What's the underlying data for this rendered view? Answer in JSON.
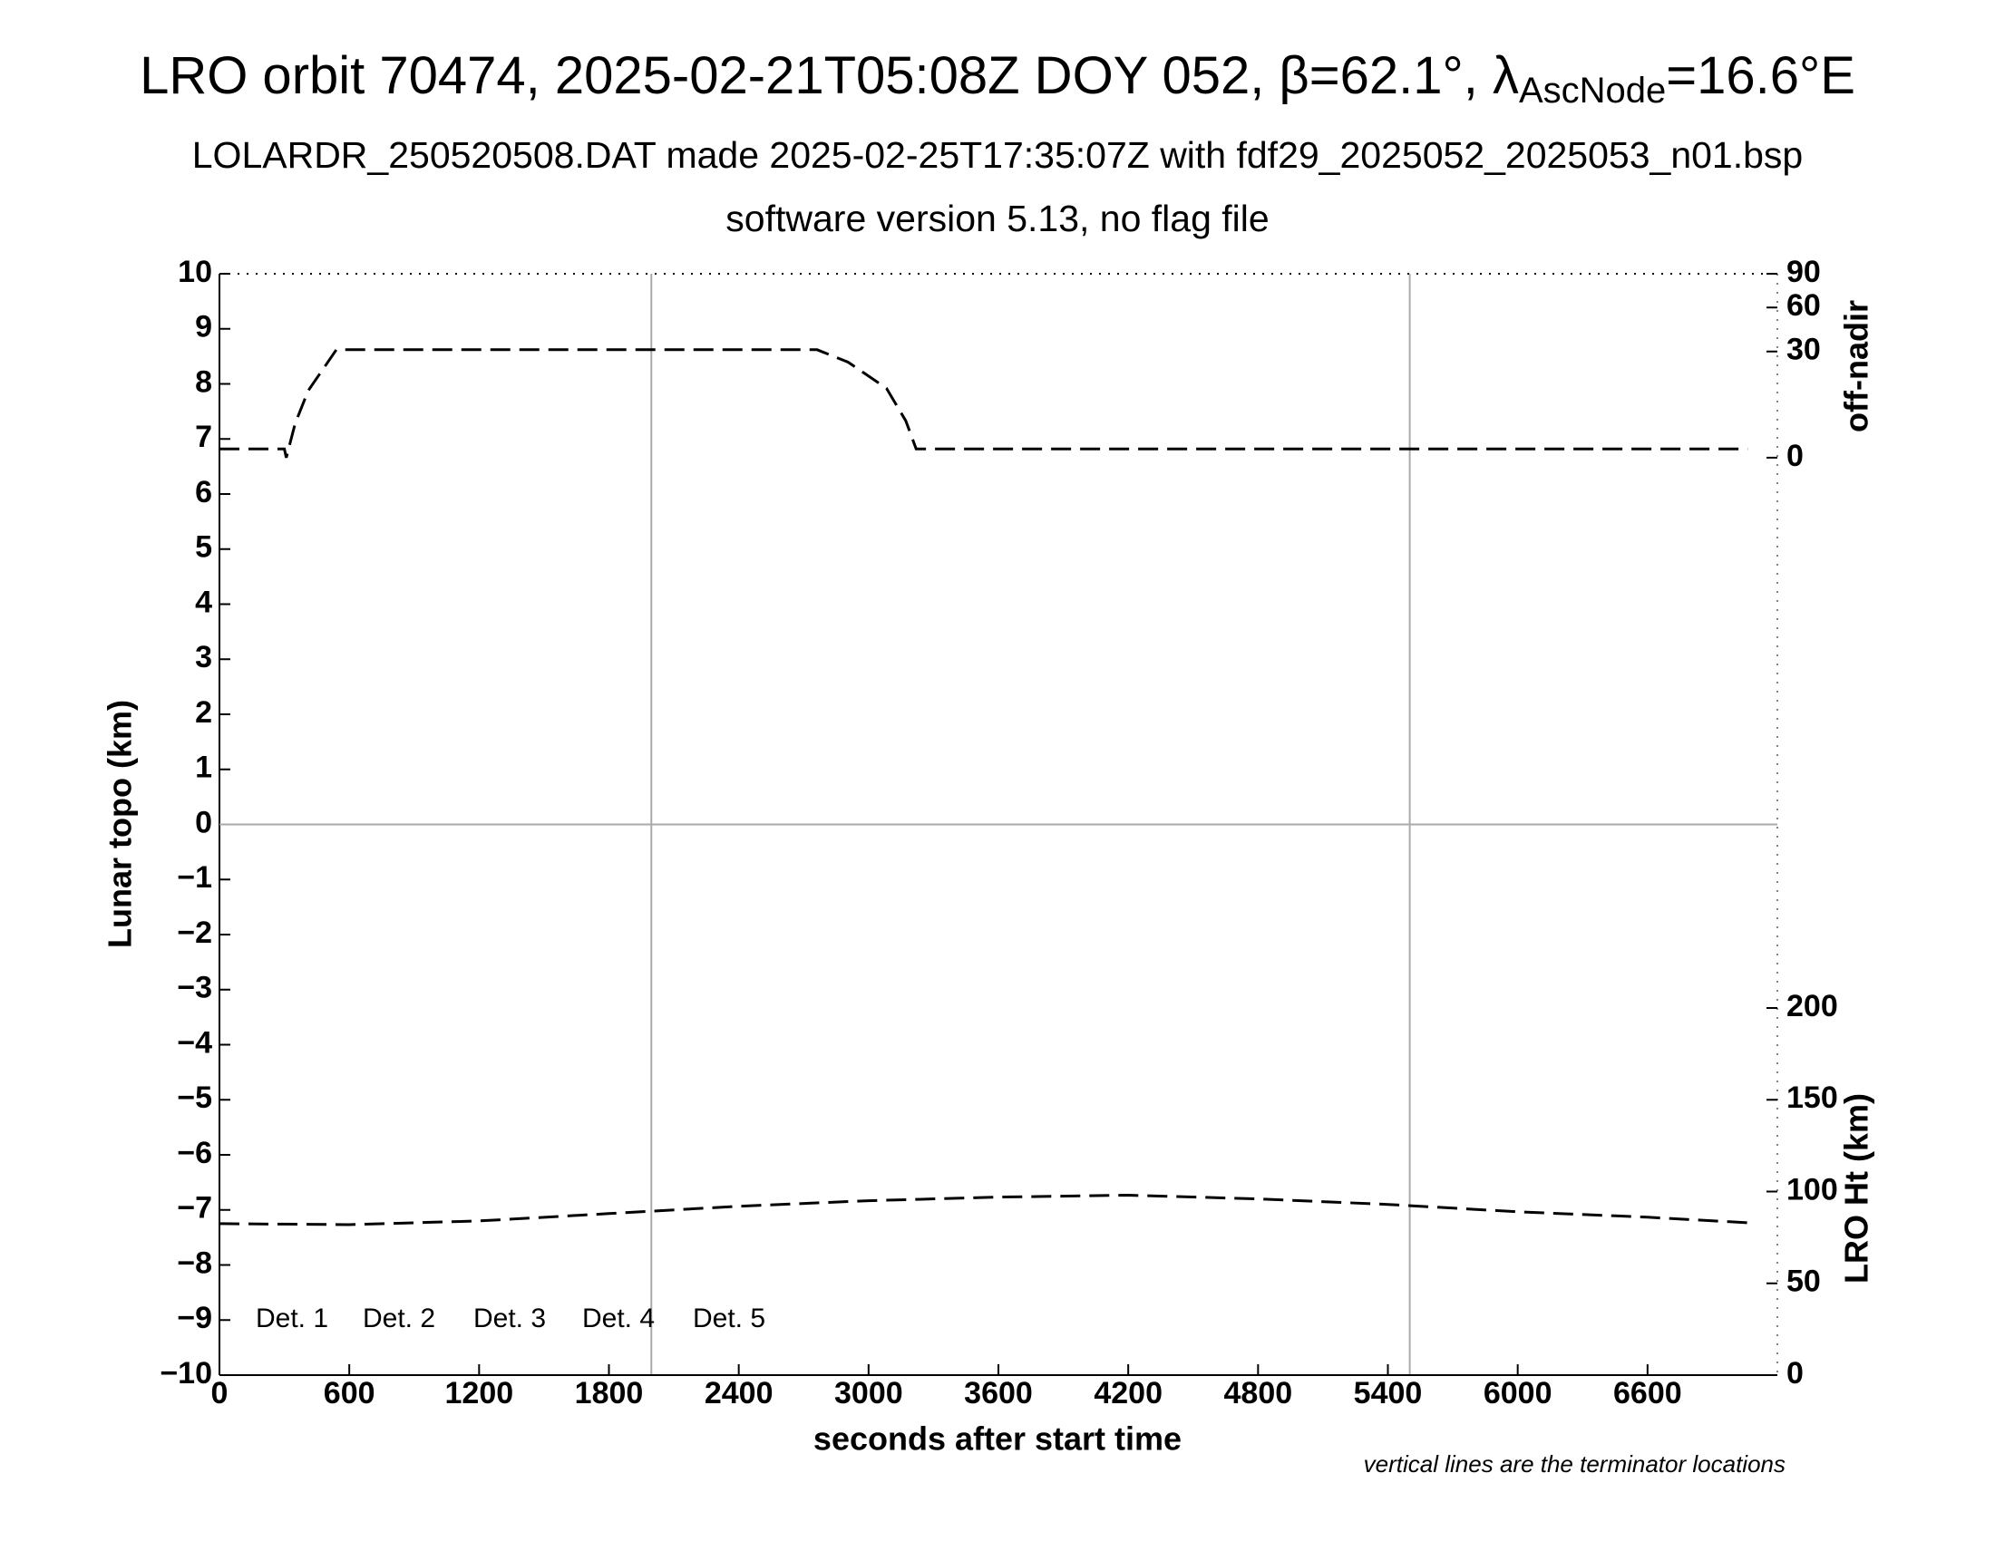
{
  "chart_data": {
    "type": "line",
    "title": "LRO orbit 70474, 2025-02-21T05:08Z DOY 052, β=62.1°, λ",
    "title_sub": "AscNode",
    "title_end": "=16.6°E",
    "subtitle": "LOLARDR_250520508.DAT made 2025-02-25T17:35:07Z with fdf29_2025052_2025053_n01.bsp",
    "subtitle2": "software version 5.13, no flag file",
    "xlabel": "seconds after start time",
    "ylabel": "Lunar topo (km)",
    "y2label": "off-nadir",
    "y3label": "LRO Ht (km)",
    "note": "vertical lines are the terminator locations",
    "xlim": [
      0,
      7200
    ],
    "xticks": [
      0,
      600,
      1200,
      1800,
      2400,
      3000,
      3600,
      4200,
      4800,
      5400,
      6000,
      6600
    ],
    "ylim": [
      -10,
      10
    ],
    "yticks": [
      {
        "value": -10,
        "label": "−10"
      },
      {
        "value": -9,
        "label": "−9"
      },
      {
        "value": -8,
        "label": "−8"
      },
      {
        "value": -7,
        "label": "−7"
      },
      {
        "value": -6,
        "label": "−6"
      },
      {
        "value": -5,
        "label": "−5"
      },
      {
        "value": -4,
        "label": "−4"
      },
      {
        "value": -3,
        "label": "−3"
      },
      {
        "value": -2,
        "label": "−2"
      },
      {
        "value": -1,
        "label": "−1"
      },
      0,
      1,
      2,
      3,
      4,
      5,
      6,
      7,
      8,
      9,
      10
    ],
    "y2lim": [
      0,
      90
    ],
    "y2scale": "sqrt",
    "y2ticks": [
      0,
      30,
      60,
      90
    ],
    "y3lim": [
      0,
      600
    ],
    "y3ticks": [
      0,
      50,
      100,
      150,
      200
    ],
    "terminators": [
      1996,
      5501
    ],
    "legend": [
      {
        "name": "Det. 1",
        "color": "#000000"
      },
      {
        "name": "Det. 2",
        "color": "#0000ff"
      },
      {
        "name": "Det. 3",
        "color": "#00ff00"
      },
      {
        "name": "Det. 4",
        "color": "#ffa500"
      },
      {
        "name": "Det. 5",
        "color": "#ff0000"
      }
    ],
    "series": [
      {
        "axis": "y2",
        "color": "#000000",
        "x": [
          0,
          300,
          309,
          350,
          410,
          540,
          2762,
          2905,
          3083,
          3172,
          3220,
          7063
        ],
        "values": [
          0.2,
          0.2,
          0,
          3.1,
          11.9,
          31,
          31,
          24.3,
          12.8,
          3.6,
          0.2,
          0.2
        ]
      },
      {
        "axis": "y3",
        "color": "#000000",
        "x": [
          0,
          600,
          1200,
          1800,
          2400,
          3000,
          3600,
          4200,
          4800,
          5400,
          6000,
          6600,
          7063
        ],
        "values": [
          82.5,
          82,
          84,
          88,
          92,
          95,
          97,
          98,
          96,
          93,
          89,
          86,
          83
        ]
      }
    ]
  }
}
